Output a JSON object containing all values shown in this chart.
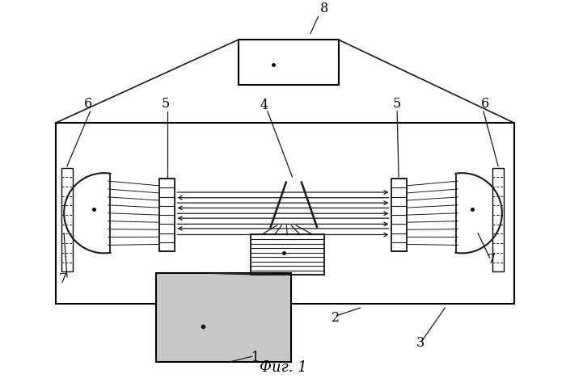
{
  "fig_width": 7.0,
  "fig_height": 4.84,
  "dpi": 100,
  "bg_color": "#ffffff",
  "line_color": "#1a1a1a",
  "title": "Фиг. 1",
  "title_fontsize": 13
}
